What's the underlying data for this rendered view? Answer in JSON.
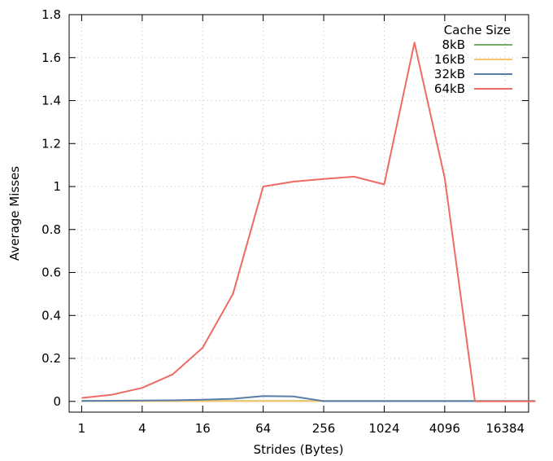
{
  "chart_data": {
    "type": "line",
    "xlabel": "Strides (Bytes)",
    "ylabel": "Average Misses",
    "x_scale": "log2",
    "xlim": [
      0.75,
      28000
    ],
    "ylim": [
      -0.05,
      1.8
    ],
    "x_ticks": [
      {
        "value": 1,
        "label": "1"
      },
      {
        "value": 4,
        "label": "4"
      },
      {
        "value": 16,
        "label": "16"
      },
      {
        "value": 64,
        "label": "64"
      },
      {
        "value": 256,
        "label": "256"
      },
      {
        "value": 1024,
        "label": "1024"
      },
      {
        "value": 4096,
        "label": "4096"
      },
      {
        "value": 16384,
        "label": "16384"
      }
    ],
    "y_ticks": [
      {
        "value": 0,
        "label": "0"
      },
      {
        "value": 0.2,
        "label": "0.2"
      },
      {
        "value": 0.4,
        "label": "0.4"
      },
      {
        "value": 0.6,
        "label": "0.6"
      },
      {
        "value": 0.8,
        "label": "0.8"
      },
      {
        "value": 1.0,
        "label": "1"
      },
      {
        "value": 1.2,
        "label": "1.2"
      },
      {
        "value": 1.4,
        "label": "1.4"
      },
      {
        "value": 1.6,
        "label": "1.6"
      },
      {
        "value": 1.8,
        "label": "1.8"
      }
    ],
    "grid": true,
    "legend": {
      "title": "Cache Size",
      "position": "top-right"
    },
    "x": [
      1,
      2,
      4,
      8,
      16,
      32,
      64,
      128,
      256,
      512,
      1024,
      2048,
      4096,
      8192,
      16384,
      32768
    ],
    "series": [
      {
        "name": "8kB",
        "color": "#77ab68",
        "values": [
          0.002,
          0.002,
          0.002,
          0.002,
          0.002,
          0.002,
          0.002,
          0.002,
          0.002,
          0.002,
          0.002,
          0.002,
          0.002,
          0.002,
          0.002,
          0.002
        ]
      },
      {
        "name": "16kB",
        "color": "#f7c66b",
        "values": [
          0.001,
          0.001,
          0.001,
          0.001,
          0.001,
          0.001,
          0.001,
          0.001,
          0.001,
          0.001,
          0.001,
          0.001,
          0.001,
          0.001,
          0.001,
          0.001
        ]
      },
      {
        "name": "32kB",
        "color": "#5a7ca8",
        "values": [
          0.002,
          0.003,
          0.004,
          0.005,
          0.008,
          0.012,
          0.025,
          0.023,
          0.001,
          0.001,
          0.001,
          0.001,
          0.001,
          0.001,
          0.001,
          0.001
        ]
      },
      {
        "name": "64kB",
        "color": "#ee6b64",
        "values": [
          0.016,
          0.031,
          0.063,
          0.125,
          0.25,
          0.5,
          1.0,
          1.023,
          1.035,
          1.046,
          1.01,
          1.67,
          1.04,
          0.0,
          0.0,
          0.0
        ]
      }
    ]
  }
}
